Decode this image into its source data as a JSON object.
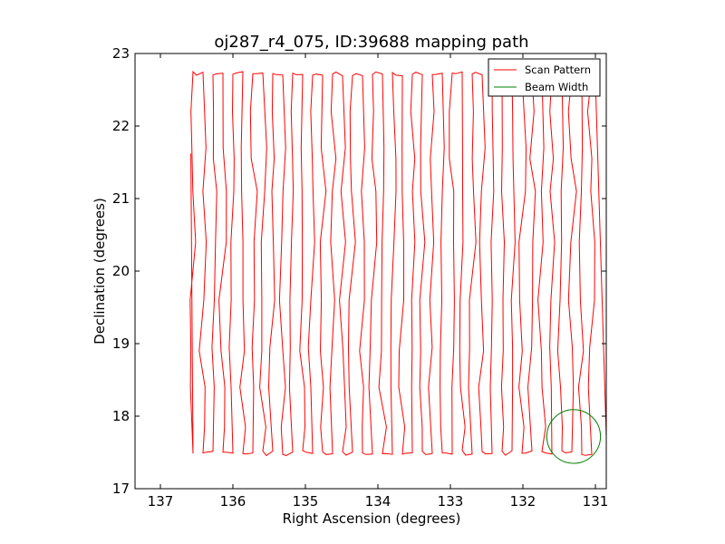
{
  "chart_data": {
    "type": "line",
    "title": "oj287_r4_075, ID:39688 mapping path",
    "xlabel": "Right Ascension (degrees)",
    "ylabel": "Declination (degrees)",
    "xlim": [
      137.35,
      130.85
    ],
    "ylim": [
      17,
      23
    ],
    "x_inverted": true,
    "xticks": [
      137,
      136,
      135,
      134,
      133,
      132,
      131
    ],
    "yticks": [
      17,
      18,
      19,
      20,
      21,
      22,
      23
    ],
    "xtick_labels": [
      "137",
      "136",
      "135",
      "134",
      "133",
      "132",
      "131"
    ],
    "ytick_labels": [
      "17",
      "18",
      "19",
      "20",
      "21",
      "22",
      "23"
    ],
    "legend_position": "top-right",
    "series": [
      {
        "name": "Scan Pattern",
        "color": "#ff0000",
        "pattern": "raster",
        "ra_start": 136.55,
        "ra_end": 131.05,
        "column_count": 41,
        "dec_top": 22.72,
        "dec_bottom": 17.48,
        "start_point": [
          136.58,
          21.62
        ],
        "end_point": [
          130.85,
          17.72
        ]
      },
      {
        "name": "Beam Width",
        "color": "#008000",
        "shape": "circle",
        "center": [
          131.3,
          17.72
        ],
        "radius_deg": 0.37
      }
    ]
  }
}
